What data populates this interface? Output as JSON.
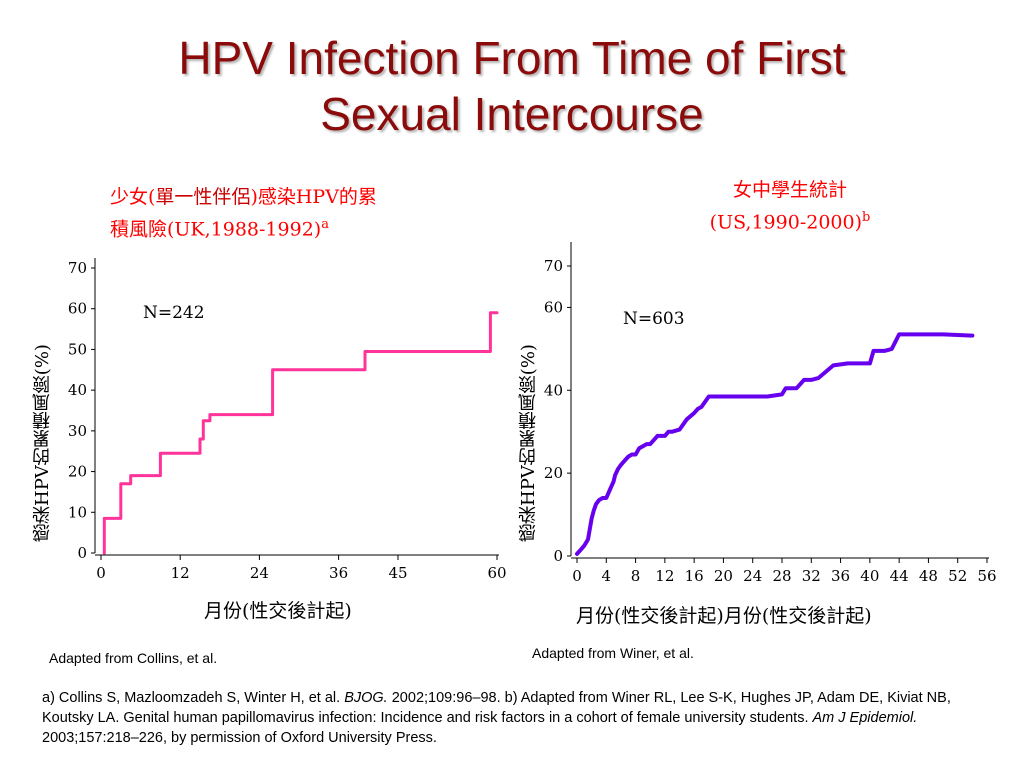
{
  "slide": {
    "title_line1": "HPV Infection From Time of First",
    "title_line2": "Sexual Intercourse",
    "left_subtitle_pre": "少女(",
    "left_subtitle_hl": "單一性伴侶",
    "left_subtitle_post": ")感染HPV的累",
    "left_subtitle_line2": "積風險(UK,1988-1992)",
    "left_subtitle_sup": "a",
    "right_subtitle_line1": "女中學生統計",
    "right_subtitle_line2": "(US,1990-2000)",
    "right_subtitle_sup": "b",
    "left_ylabel": "感染HPV的累積風險(%)",
    "right_ylabel": "感染HPV的累積風險(%)",
    "left_xlabel": "月份(性交後計起)",
    "right_xlabel": "月份(性交後計起)月份(性交後計起)",
    "left_credit": "Adapted from Collins, et al.",
    "right_credit": "Adapted from Winer, et al.",
    "ref_a_pre": "a) Collins S, Mazloomzadeh S, Winter H, et al. ",
    "ref_a_journal": "BJOG.",
    "ref_a_post": " 2002;109:96–98. b) Adapted from Winer RL, Lee S-K, Hughes JP, Adam DE, Kiviat NB, Koutsky LA. Genital human papillomavirus infection: Incidence and risk factors in a cohort of female university students. ",
    "ref_b_journal": "Am J Epidemiol.",
    "ref_b_post": " 2003;157:218–226, by permission of Oxford University Press."
  },
  "chart_data": [
    {
      "type": "line",
      "step": true,
      "title": "少女(單一性伴侶)感染HPV的累積風險(UK,1988-1992)",
      "xlabel": "月份(性交後計起)",
      "ylabel": "感染HPV的累積風險(%)",
      "annotation": "N=242",
      "color": "#ff3399",
      "xlim": [
        0,
        60
      ],
      "ylim": [
        0,
        70
      ],
      "xticks": [
        "0",
        "12",
        "24",
        "36",
        "45",
        "60"
      ],
      "yticks": [
        "0",
        "10",
        "20",
        "30",
        "40",
        "50",
        "60",
        "70"
      ],
      "series": [
        {
          "x": [
            0.5,
            0.5,
            3,
            3,
            4.5,
            4.5,
            9,
            9,
            15,
            15,
            15.5,
            15.5,
            16.5,
            16.5,
            26,
            26,
            40,
            40,
            59,
            59,
            60
          ],
          "y": [
            0,
            8.5,
            8.5,
            17,
            17,
            19,
            19,
            24.5,
            24.5,
            28,
            28,
            32.5,
            32.5,
            34,
            34,
            45,
            45,
            49.5,
            49.5,
            59,
            59
          ]
        }
      ]
    },
    {
      "type": "line",
      "step": true,
      "title": "女中學生統計(US,1990-2000)",
      "xlabel": "月份(性交後計起)",
      "ylabel": "感染HPV的累積風險(%)",
      "annotation": "N=603",
      "color": "#6600ee",
      "xlim": [
        0,
        56
      ],
      "ylim": [
        0,
        70
      ],
      "xticks": [
        "0",
        "4",
        "8",
        "12",
        "16",
        "20",
        "24",
        "28",
        "32",
        "36",
        "40",
        "44",
        "48",
        "52",
        "56"
      ],
      "yticks": [
        "0",
        "20",
        "40",
        "60",
        "70"
      ],
      "series": [
        {
          "x": [
            0,
            0.5,
            1,
            1.5,
            2,
            2.3,
            2.6,
            3,
            3.5,
            4,
            4.5,
            5,
            5.2,
            5.6,
            6,
            6.5,
            7,
            7.5,
            8,
            8.5,
            9,
            9.5,
            10,
            11,
            12,
            12.5,
            13,
            14,
            15,
            16,
            16.5,
            17,
            18,
            20,
            24,
            26,
            28,
            28.5,
            30,
            31,
            32,
            33,
            35,
            37,
            40,
            40.5,
            42,
            43,
            44,
            46,
            50,
            54
          ],
          "y": [
            0.5,
            1.5,
            2.5,
            4,
            9,
            11,
            12.5,
            13.5,
            14,
            14,
            16,
            18,
            19.5,
            21,
            22,
            23,
            24,
            24.5,
            24.5,
            26,
            26.5,
            27,
            27,
            29,
            29,
            30,
            30,
            30.5,
            33,
            34.5,
            35.5,
            36,
            38.5,
            38.5,
            38.5,
            38.5,
            39,
            40.5,
            40.5,
            42.5,
            42.5,
            43,
            46,
            46.5,
            46.5,
            49.5,
            49.5,
            50,
            53.5,
            53.5,
            53.5,
            53.2
          ]
        }
      ]
    }
  ]
}
